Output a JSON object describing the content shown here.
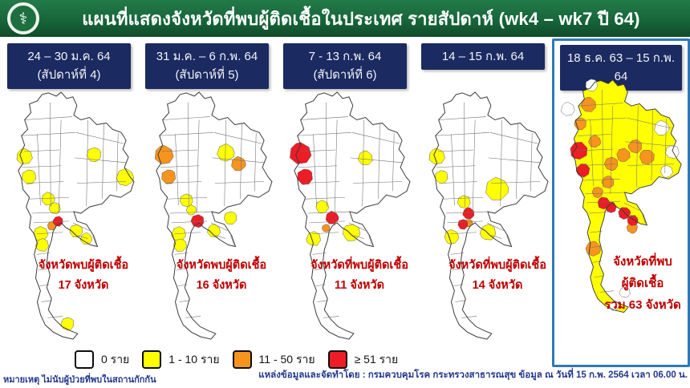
{
  "header": {
    "title": "แผนที่แสดงจังหวัดที่พบผู้ติดเชื้อในประเทศ รายสัปดาห์ (wk4 – wk7 ปี 64)",
    "logo": "ministry-of-public-health-emblem",
    "logo_glyph": "⚕"
  },
  "columns": [
    {
      "date_label": "24 – 30 ม.ค. 64",
      "week_label": "(สัปดาห์ที่ 4)",
      "caption_lines": [
        "จังหวัดพบผู้ติดเชื้อ",
        "17 จังหวัด"
      ],
      "infected_provinces": 17,
      "highlighted": false,
      "map": {
        "base": "w",
        "regions": [
          [
            30,
            86,
            1.1,
            "y"
          ],
          [
            36,
            112,
            1.0,
            "y"
          ],
          [
            60,
            140,
            0.9,
            "y"
          ],
          [
            68,
            152,
            0.8,
            "y"
          ],
          [
            50,
            184,
            1.0,
            "y"
          ],
          [
            52,
            198,
            0.9,
            "y"
          ],
          [
            95,
            180,
            0.9,
            "y"
          ],
          [
            108,
            190,
            0.8,
            "y"
          ],
          [
            118,
            84,
            1.0,
            "y"
          ],
          [
            157,
            113,
            1.2,
            "y"
          ],
          [
            84,
            298,
            0.9,
            "y"
          ],
          [
            64,
            174,
            0.6,
            "o"
          ],
          [
            72,
            168,
            0.7,
            "r"
          ]
        ]
      }
    },
    {
      "date_label": "31 ม.ค. – 6 ก.พ. 64",
      "week_label": "(สัปดาห์ที่ 5)",
      "caption_lines": [
        "จังหวัดพบผู้ติดเชื้อ",
        "16 จังหวัด"
      ],
      "infected_provinces": 16,
      "highlighted": false,
      "map": {
        "base": "w",
        "regions": [
          [
            32,
            84,
            1.3,
            "o"
          ],
          [
            38,
            112,
            1.0,
            "o"
          ],
          [
            126,
            96,
            1.0,
            "o"
          ],
          [
            60,
            142,
            0.9,
            "y"
          ],
          [
            66,
            154,
            0.7,
            "y"
          ],
          [
            50,
            184,
            1.0,
            "y"
          ],
          [
            52,
            198,
            0.9,
            "y"
          ],
          [
            95,
            180,
            0.9,
            "y"
          ],
          [
            116,
            164,
            0.9,
            "y"
          ],
          [
            110,
            82,
            1.2,
            "y"
          ],
          [
            74,
            168,
            0.9,
            "r"
          ]
        ]
      }
    },
    {
      "date_label": "7 - 13 ก.พ. 64",
      "week_label": "(สัปดาห์ที่ 6)",
      "caption_lines": [
        "จังหวัดที่พบผู้ติดเชื้อ",
        "11 จังหวัด"
      ],
      "infected_provinces": 11,
      "highlighted": false,
      "map": {
        "base": "w",
        "regions": [
          [
            30,
            82,
            1.5,
            "r"
          ],
          [
            36,
            112,
            1.1,
            "r"
          ],
          [
            70,
            164,
            0.9,
            "r"
          ],
          [
            62,
            177,
            0.55,
            "o"
          ],
          [
            57,
            150,
            0.9,
            "y"
          ],
          [
            46,
            190,
            1.0,
            "y"
          ],
          [
            94,
            182,
            1.2,
            "y"
          ],
          [
            112,
            88,
            1.0,
            "y"
          ]
        ]
      }
    },
    {
      "date_label": "14 – 15 ก.พ. 64",
      "week_label": "",
      "caption_lines": [
        "จังหวัดที่พบผู้ติดเชื้อ",
        "14 จังหวัด"
      ],
      "infected_provinces": 14,
      "highlighted": false,
      "map": {
        "base": "w",
        "regions": [
          [
            28,
            86,
            1.1,
            "y"
          ],
          [
            34,
            112,
            0.9,
            "y"
          ],
          [
            104,
            128,
            1.6,
            "y"
          ],
          [
            62,
            144,
            0.9,
            "y"
          ],
          [
            46,
            188,
            1.0,
            "y"
          ],
          [
            92,
            182,
            1.1,
            "y"
          ],
          [
            68,
            170,
            0.55,
            "o"
          ],
          [
            68,
            158,
            0.8,
            "r"
          ],
          [
            61,
            172,
            0.7,
            "r"
          ]
        ]
      }
    },
    {
      "date_label": "18 ธ.ค. 63 – 15 ก.พ. 64",
      "week_label": "",
      "caption_lines": [
        "จังหวัดที่พบ",
        "ผู้ติดเชื้อ",
        "รวม 63 จังหวัด"
      ],
      "infected_provinces": 63,
      "highlighted": true,
      "map": {
        "base": "y",
        "regions": [
          [
            16,
            44,
            1.0,
            "w"
          ],
          [
            48,
            12,
            0.9,
            "w"
          ],
          [
            142,
            70,
            1.1,
            "w"
          ],
          [
            156,
            102,
            1.0,
            "w"
          ],
          [
            148,
            128,
            0.9,
            "w"
          ],
          [
            92,
            290,
            0.8,
            "w"
          ],
          [
            78,
            308,
            0.7,
            "w"
          ],
          [
            44,
            38,
            1.1,
            "o"
          ],
          [
            33,
            64,
            0.9,
            "o"
          ],
          [
            52,
            88,
            0.9,
            "o"
          ],
          [
            74,
            118,
            1.0,
            "o"
          ],
          [
            90,
            106,
            1.0,
            "o"
          ],
          [
            106,
            94,
            1.0,
            "o"
          ],
          [
            122,
            108,
            1.1,
            "o"
          ],
          [
            70,
            142,
            0.9,
            "o"
          ],
          [
            56,
            156,
            0.8,
            "o"
          ],
          [
            50,
            232,
            1.1,
            "o"
          ],
          [
            102,
            204,
            0.8,
            "o"
          ],
          [
            30,
            100,
            1.3,
            "r"
          ],
          [
            36,
            126,
            1.0,
            "r"
          ],
          [
            64,
            170,
            0.9,
            "r"
          ],
          [
            74,
            176,
            0.8,
            "r"
          ],
          [
            92,
            184,
            0.9,
            "r"
          ],
          [
            103,
            194,
            0.8,
            "r"
          ]
        ]
      }
    }
  ],
  "legend": {
    "items": [
      {
        "label": "0  ราย",
        "color_key": "w"
      },
      {
        "label": "1 - 10  ราย",
        "color_key": "y"
      },
      {
        "label": "11 - 50 ราย",
        "color_key": "o"
      },
      {
        "label": "≥ 51  ราย",
        "color_key": "r"
      }
    ]
  },
  "colors": {
    "header_green": "#17663a",
    "box_navy": "#1b2a60",
    "caption_red": "#c00000",
    "panel_border_blue": "#2e79b9",
    "note_blue": "#24388f",
    "w": "#ffffff",
    "y": "#ffff00",
    "o": "#f7941d",
    "r": "#ee1c25"
  },
  "footnote": "หมายเหตุ ไม่นับผู้ป่วยที่พบในสถานกักกัน",
  "source": "แหล่งข้อมูลและจัดทำโดย : กรมควบคุมโรค กระทรวงสาธารณสุข ข้อมูล ณ วันที่ 15 ก.พ. 2564 เวลา 06.00 น."
}
